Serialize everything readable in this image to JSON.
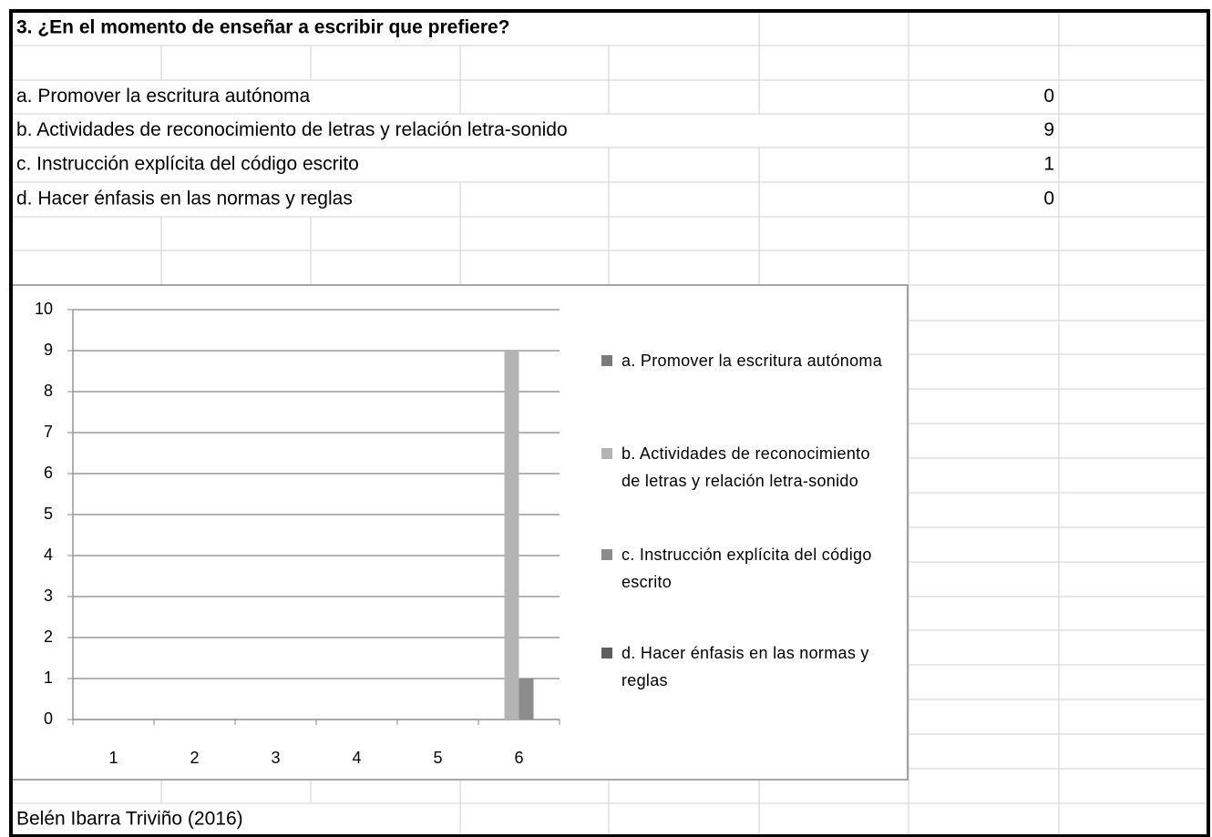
{
  "sheet": {
    "title": "3. ¿En el momento de enseñar a escribir que prefiere?",
    "rows": [
      {
        "label": "a. Promover la escritura autónoma",
        "value": 0
      },
      {
        "label": "b. Actividades de reconocimiento de letras y relación letra-sonido",
        "value": 9
      },
      {
        "label": "c. Instrucción explícita del código escrito",
        "value": 1
      },
      {
        "label": "d. Hacer énfasis en las normas y reglas",
        "value": 0
      }
    ],
    "source": "Belén Ibarra Triviño (2016)"
  },
  "chart_data": {
    "type": "bar",
    "categories": [
      1,
      2,
      3,
      4,
      5,
      6
    ],
    "series": [
      {
        "name": "a. Promover la escritura autónoma",
        "color": "#7a7a7a",
        "values": [
          null,
          null,
          null,
          null,
          null,
          0
        ]
      },
      {
        "name": "b. Actividades de reconocimiento de letras y relación letra-sonido",
        "color": "#b4b4b4",
        "values": [
          null,
          null,
          null,
          null,
          null,
          9
        ]
      },
      {
        "name": "c. Instrucción explícita del código escrito",
        "color": "#8c8c8c",
        "values": [
          null,
          null,
          null,
          null,
          null,
          1
        ]
      },
      {
        "name": "d. Hacer énfasis en las normas y reglas",
        "color": "#5e5e5e",
        "values": [
          null,
          null,
          null,
          null,
          null,
          0
        ]
      }
    ],
    "ylim": [
      0,
      10
    ],
    "yticks": [
      0,
      1,
      2,
      3,
      4,
      5,
      6,
      7,
      8,
      9,
      10
    ],
    "grid": true,
    "legend": "right"
  }
}
